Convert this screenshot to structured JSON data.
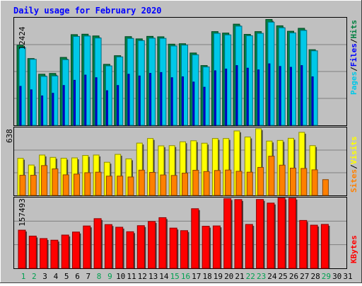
{
  "chart_data": [
    {
      "type": "bar",
      "panel": "hits-files-pages",
      "title": "Daily usage for February 2020",
      "ymax_label": "12424",
      "ylim": [
        0,
        12424
      ],
      "categories": [
        "1",
        "2",
        "3",
        "4",
        "5",
        "6",
        "7",
        "8",
        "9",
        "10",
        "11",
        "12",
        "13",
        "14",
        "15",
        "16",
        "17",
        "18",
        "19",
        "20",
        "21",
        "22",
        "23",
        "24",
        "25",
        "26",
        "27",
        "28",
        "29",
        "30",
        "31"
      ],
      "weekend_days": [
        "1",
        "2",
        "8",
        "9",
        "15",
        "16",
        "22",
        "23",
        "29"
      ],
      "series": [
        {
          "name": "Hits",
          "color": "#008040",
          "values": [
            9250,
            7710,
            5900,
            5990,
            7840,
            10470,
            10520,
            10320,
            7040,
            8040,
            10240,
            9980,
            10270,
            10220,
            9370,
            9420,
            8350,
            6900,
            10820,
            10650,
            11680,
            10500,
            10820,
            12220,
            11490,
            10860,
            11200,
            8730,
            0,
            0,
            0
          ]
        },
        {
          "name": "Files",
          "color": "#00c8e8",
          "values": [
            8980,
            7620,
            5650,
            5700,
            7580,
            10260,
            10310,
            10080,
            6860,
            7900,
            10030,
            9780,
            10060,
            10040,
            9160,
            9260,
            8140,
            6740,
            10620,
            10440,
            11450,
            10340,
            10620,
            11910,
            11260,
            10670,
            10960,
            8600,
            0,
            0,
            0
          ]
        },
        {
          "name": "Pages",
          "color": "#0000ff",
          "values": [
            4500,
            4100,
            3400,
            3700,
            4600,
            5200,
            5800,
            5500,
            4000,
            4600,
            5900,
            5700,
            6000,
            6100,
            5500,
            5600,
            5000,
            4400,
            6300,
            6500,
            6900,
            6600,
            6400,
            7100,
            6800,
            6700,
            6900,
            5600,
            0,
            0,
            0
          ]
        }
      ]
    },
    {
      "type": "bar",
      "panel": "visits-sites",
      "ymax_label": "638",
      "ylim": [
        0,
        638
      ],
      "series": [
        {
          "name": "Visits",
          "color": "#ffff00",
          "values": [
            348,
            285,
            379,
            357,
            349,
            352,
            375,
            379,
            311,
            385,
            343,
            491,
            534,
            465,
            467,
            503,
            513,
            490,
            534,
            534,
            605,
            548,
            626,
            510,
            516,
            536,
            592,
            467,
            0,
            0,
            0
          ]
        },
        {
          "name": "Sites",
          "color": "#ff8000",
          "values": [
            189,
            189,
            280,
            249,
            193,
            200,
            213,
            218,
            181,
            181,
            173,
            237,
            216,
            192,
            187,
            209,
            236,
            224,
            234,
            238,
            226,
            218,
            263,
            368,
            284,
            256,
            253,
            240,
            148,
            0,
            0
          ]
        }
      ]
    },
    {
      "type": "bar",
      "panel": "kbytes",
      "ymax_label": "157493",
      "ylim": [
        0,
        157493
      ],
      "series": [
        {
          "name": "KBytes",
          "color": "#ff0000",
          "values": [
            84900,
            71700,
            66200,
            62600,
            74000,
            80700,
            94200,
            110500,
            97300,
            91400,
            81400,
            94900,
            104200,
            112700,
            89500,
            83800,
            132600,
            93600,
            94300,
            155000,
            153000,
            97600,
            153200,
            145100,
            156200,
            155900,
            106500,
            96000,
            97700,
            0,
            0
          ]
        }
      ]
    }
  ],
  "legend": {
    "panel1": {
      "pages": "Pages",
      "files": "Files",
      "hits": "Hits",
      "sep": "/"
    },
    "panel2": {
      "sites": "Sites",
      "visits": "Visits",
      "sep": "/"
    },
    "panel3": {
      "kbytes": "KBytes"
    }
  },
  "colors": {
    "background": "#c0c0c0",
    "plot_background": "#c0c0c0",
    "grid": "#808080",
    "title": "#0000ff",
    "weekend_label": "#00a050",
    "weekday_label": "#000000"
  }
}
